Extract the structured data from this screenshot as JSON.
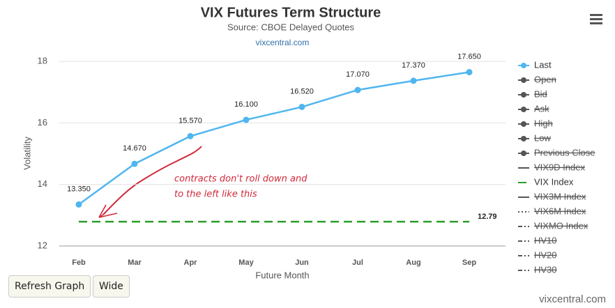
{
  "chart_data": {
    "type": "line",
    "title": "VIX Futures Term Structure",
    "subtitle": "Source: CBOE Delayed Quotes",
    "credit_top": "vixcentral.com",
    "credit_bottom": "vixcentral.com",
    "y_label": "Volatility",
    "x_label": "Future Month",
    "categories": [
      "Feb",
      "Mar",
      "Apr",
      "May",
      "Jun",
      "Jul",
      "Aug",
      "Sep"
    ],
    "ylim": [
      12,
      18.5
    ],
    "yticks": [
      12,
      14,
      16,
      18
    ],
    "grid": true,
    "series": [
      {
        "name": "Last",
        "color": "#4fb6ef",
        "visible": true,
        "values": [
          13.35,
          14.67,
          15.57,
          16.1,
          16.52,
          17.07,
          17.37,
          17.65
        ],
        "value_labels": [
          "13.350",
          "14.670",
          "15.570",
          "16.100",
          "16.520",
          "17.070",
          "17.370",
          "17.650"
        ]
      },
      {
        "name": "Open",
        "color": "#555555",
        "visible": false
      },
      {
        "name": "Bid",
        "color": "#555555",
        "visible": false
      },
      {
        "name": "Ask",
        "color": "#555555",
        "visible": false
      },
      {
        "name": "High",
        "color": "#555555",
        "visible": false
      },
      {
        "name": "Low",
        "color": "#555555",
        "visible": false
      },
      {
        "name": "Previous Close",
        "color": "#555555",
        "visible": false
      },
      {
        "name": "VIX9D Index",
        "color": "#555555",
        "visible": false,
        "dash": "solid"
      },
      {
        "name": "VIX Index",
        "color": "#2a9d2a",
        "visible": true,
        "dash": "dashed",
        "level": 12.79,
        "level_label": "12.79"
      },
      {
        "name": "VIX3M Index",
        "color": "#555555",
        "visible": false,
        "dash": "solid"
      },
      {
        "name": "VIX6M Index",
        "color": "#555555",
        "visible": false,
        "dash": "dotted"
      },
      {
        "name": "VIXMO Index",
        "color": "#555555",
        "visible": false,
        "dash": "dashdot"
      },
      {
        "name": "HV10",
        "color": "#555555",
        "visible": false,
        "dash": "dashdot"
      },
      {
        "name": "HV20",
        "color": "#555555",
        "visible": false,
        "dash": "dashdot"
      },
      {
        "name": "HV30",
        "color": "#555555",
        "visible": false,
        "dash": "dashdot"
      }
    ],
    "annotation": [
      "contracts don't roll down and",
      "to the left like this"
    ],
    "buttons": [
      "Refresh Graph",
      "Wide"
    ]
  }
}
